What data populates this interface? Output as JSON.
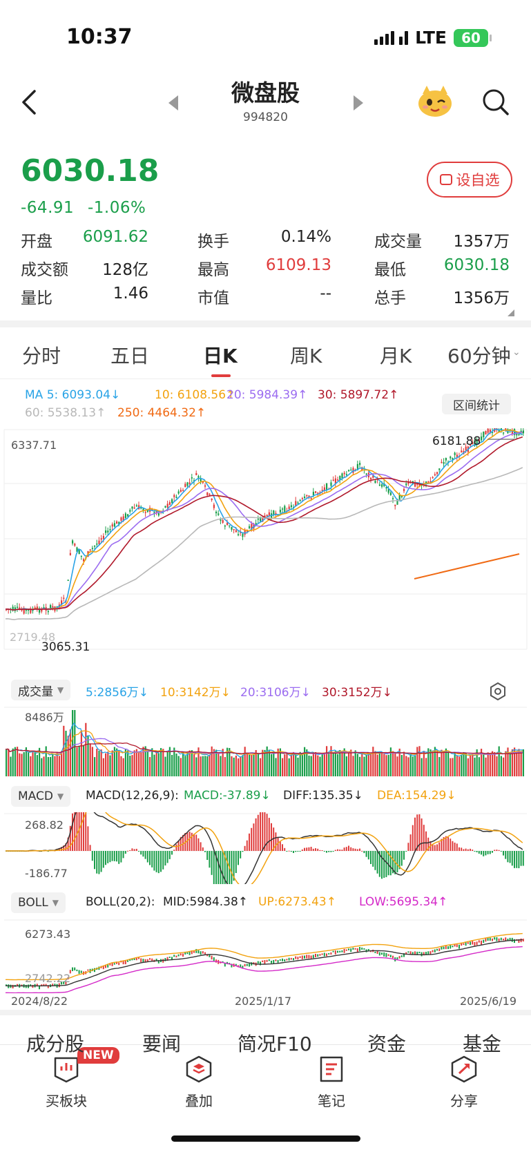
{
  "status": {
    "time": "10:37",
    "network": "LTE",
    "battery": "60"
  },
  "header": {
    "title": "微盘股",
    "code": "994820"
  },
  "quote": {
    "price": "6030.18",
    "change": "-64.91",
    "change_pct": "-1.06%",
    "watch_label": "设自选",
    "stats": [
      {
        "label": "开盘",
        "value": "6091.62",
        "tone": "green"
      },
      {
        "label": "换手",
        "value": "0.14%",
        "tone": "dark"
      },
      {
        "label": "成交量",
        "value": "1357万",
        "tone": "dark"
      },
      {
        "label": "成交额",
        "value": "128亿",
        "tone": "dark"
      },
      {
        "label": "最高",
        "value": "6109.13",
        "tone": "red"
      },
      {
        "label": "最低",
        "value": "6030.18",
        "tone": "green"
      },
      {
        "label": "量比",
        "value": "1.46",
        "tone": "dark"
      },
      {
        "label": "市值",
        "value": "--",
        "tone": "dark"
      },
      {
        "label": "总手",
        "value": "1356万",
        "tone": "dark"
      }
    ]
  },
  "tabs": [
    "分时",
    "五日",
    "日K",
    "周K",
    "月K",
    "60分钟"
  ],
  "active_tab": "日K",
  "ma_legend": {
    "ma5": "MA 5: 6093.04↓",
    "ma10": "10: 6108.56↑",
    "ma20": "20: 5984.39↑",
    "ma30": "30: 5897.72↑",
    "ma60": "60: 5538.13↑",
    "ma250": "250: 4464.32↑",
    "range_btn": "区间统计"
  },
  "kline": {
    "max_label": "6337.71",
    "high_mark": "6181.88",
    "low_mark": "3065.31",
    "faded_label": "2719.48"
  },
  "volume": {
    "label": "成交量",
    "ma5": "5:2856万↓",
    "ma10": "10:3142万↓",
    "ma20": "20:3106万↓",
    "ma30": "30:3152万↓",
    "max_label": "8486万"
  },
  "macd": {
    "label": "MACD",
    "params": "MACD(12,26,9):",
    "macd": "MACD:-37.89↓",
    "diff": "DIFF:135.35↓",
    "dea": "DEA:154.29↓",
    "top": "268.82",
    "bottom": "-186.77"
  },
  "boll": {
    "label": "BOLL",
    "params": "BOLL(20,2):",
    "mid": "MID:5984.38↑",
    "up": "UP:6273.43↑",
    "low": "LOW:5695.34↑",
    "top": "6273.43",
    "bottom": "2742.22"
  },
  "dates": [
    "2024/8/22",
    "2025/1/17",
    "2025/6/19"
  ],
  "section_tabs": [
    "成分股",
    "要闻",
    "简况F10",
    "资金",
    "基金"
  ],
  "actions": [
    {
      "label": "买板块",
      "icon": "chart-board-icon",
      "badge": "NEW"
    },
    {
      "label": "叠加",
      "icon": "layers-icon"
    },
    {
      "label": "笔记",
      "icon": "note-icon"
    },
    {
      "label": "分享",
      "icon": "share-icon"
    }
  ],
  "colors": {
    "red": "#e03c3c",
    "green": "#1a9e4a",
    "ma5": "#29a3e6",
    "ma10": "#f2a20f",
    "ma20": "#9b6cf0",
    "ma30": "#b0182a",
    "ma60": "#b8b8b8",
    "ma250": "#f06a14",
    "boll_low": "#d429c8"
  }
}
